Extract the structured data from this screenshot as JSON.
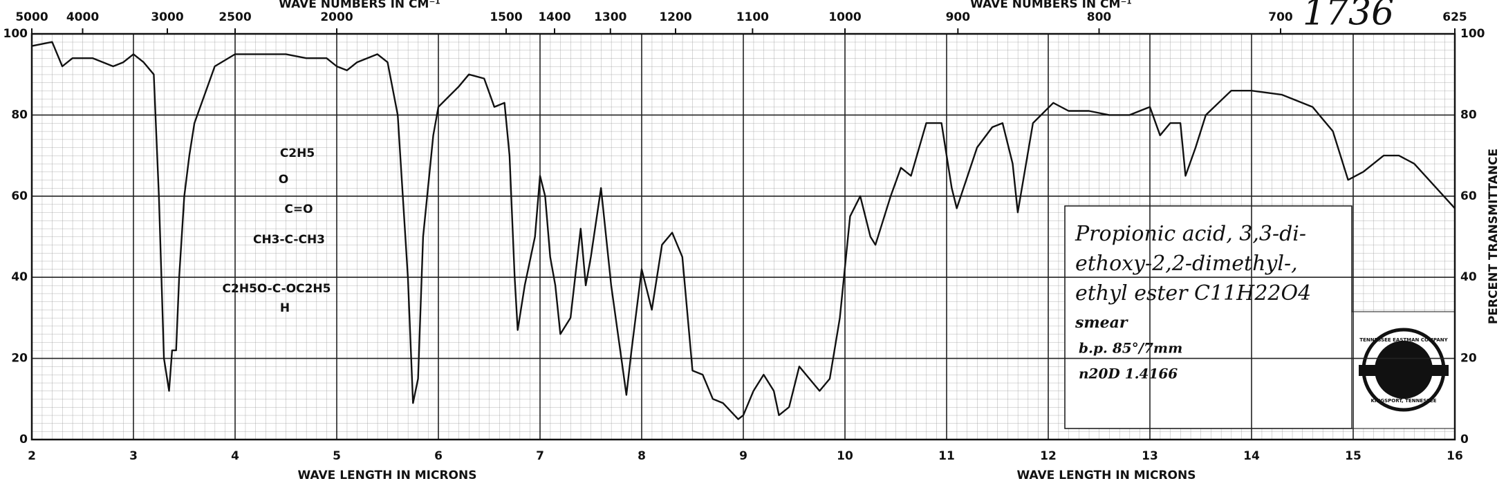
{
  "chart_data": {
    "type": "line",
    "x_label": "WAVE LENGTH IN MICRONS",
    "x2_label": "WAVE NUMBERS IN CM⁻¹",
    "y_label": "PERCENT TRANSMITTANCE",
    "xlim": [
      2,
      16
    ],
    "xticks": [
      2,
      3,
      4,
      5,
      6,
      7,
      8,
      9,
      10,
      11,
      12,
      13,
      14,
      15,
      16
    ],
    "x2ticks": [
      5000,
      4000,
      3000,
      2500,
      2000,
      1500,
      1400,
      1300,
      1200,
      1100,
      1000,
      900,
      800,
      700,
      625
    ],
    "ylim": [
      0,
      100
    ],
    "yticks": [
      0,
      20,
      40,
      60,
      80,
      100
    ],
    "grid": true,
    "x": [
      2.0,
      2.2,
      2.3,
      2.4,
      2.6,
      2.8,
      2.9,
      3.0,
      3.1,
      3.2,
      3.25,
      3.3,
      3.35,
      3.38,
      3.42,
      3.45,
      3.5,
      3.55,
      3.6,
      3.7,
      3.8,
      4.0,
      4.2,
      4.5,
      4.7,
      4.9,
      5.0,
      5.1,
      5.2,
      5.4,
      5.5,
      5.6,
      5.7,
      5.75,
      5.8,
      5.85,
      5.95,
      6.0,
      6.2,
      6.3,
      6.45,
      6.55,
      6.65,
      6.7,
      6.75,
      6.78,
      6.85,
      6.95,
      7.0,
      7.05,
      7.1,
      7.15,
      7.2,
      7.3,
      7.4,
      7.45,
      7.5,
      7.6,
      7.7,
      7.8,
      7.85,
      7.9,
      8.0,
      8.1,
      8.2,
      8.3,
      8.4,
      8.5,
      8.6,
      8.7,
      8.8,
      8.95,
      9.0,
      9.1,
      9.2,
      9.3,
      9.35,
      9.45,
      9.55,
      9.65,
      9.75,
      9.85,
      9.95,
      10.05,
      10.15,
      10.25,
      10.3,
      10.45,
      10.55,
      10.65,
      10.8,
      10.95,
      11.05,
      11.1,
      11.3,
      11.45,
      11.55,
      11.65,
      11.7,
      11.85,
      12.05,
      12.2,
      12.4,
      12.6,
      12.8,
      13.0,
      13.1,
      13.2,
      13.3,
      13.35,
      13.45,
      13.55,
      13.8,
      14.0,
      14.3,
      14.6,
      14.8,
      14.95,
      15.1,
      15.3,
      15.45,
      15.6,
      16.0
    ],
    "series": [
      {
        "color": "#111111",
        "values": [
          97,
          98,
          92,
          94,
          94,
          92,
          93,
          95,
          93,
          90,
          60,
          20,
          12,
          22,
          22,
          40,
          60,
          70,
          78,
          85,
          92,
          95,
          95,
          95,
          94,
          94,
          92,
          91,
          93,
          95,
          93,
          80,
          40,
          9,
          15,
          50,
          75,
          82,
          87,
          90,
          89,
          82,
          83,
          70,
          40,
          27,
          38,
          50,
          65,
          60,
          45,
          38,
          26,
          30,
          52,
          38,
          45,
          62,
          38,
          20,
          11,
          22,
          42,
          32,
          48,
          51,
          45,
          17,
          16,
          10,
          9,
          5,
          6,
          12,
          16,
          12,
          6,
          8,
          18,
          15,
          12,
          15,
          30,
          55,
          60,
          50,
          48,
          60,
          67,
          65,
          78,
          78,
          62,
          57,
          72,
          77,
          78,
          68,
          56,
          78,
          83,
          81,
          81,
          80,
          80,
          82,
          75,
          78,
          78,
          65,
          72,
          80,
          86,
          86,
          85,
          82,
          76,
          64,
          66,
          70,
          70,
          68,
          57
        ]
      }
    ],
    "spectrum_number": "1736",
    "structure": [
      "C2H5",
      "O",
      "C=O",
      "CH3-C-CH3",
      "C2H5O-C-OC2H5",
      "H"
    ],
    "compound": [
      "Propionic acid, 3,3-di-",
      "ethoxy-2,2-dimethyl-,",
      "ethyl ester  C11H22O4",
      "smear",
      "b.p. 85°/7mm",
      "n20D 1.4166"
    ],
    "logo": [
      "TENNESSEE EASTMAN COMPANY",
      "KINGSPORT, TENNESSEE"
    ]
  }
}
